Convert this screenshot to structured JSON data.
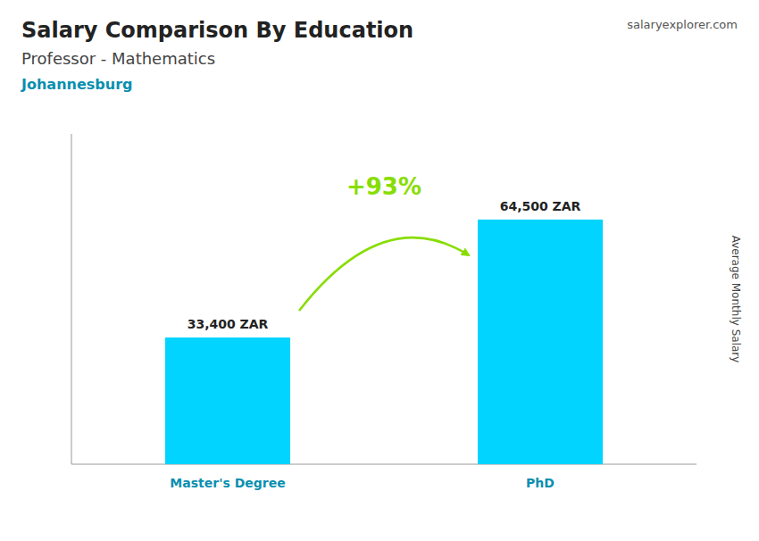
{
  "chart_data": {
    "type": "bar",
    "title": "Salary Comparison By Education",
    "subtitle": "Professor - Mathematics",
    "y_label": "Average Monthly Salary",
    "annotations": [
      {
        "text": "Johannesburg"
      },
      {
        "text": "+93%",
        "color": "#88dd00"
      },
      {
        "text": "salaryexplorer.com"
      }
    ],
    "categories": [
      "Master's Degree",
      "PhD"
    ],
    "values": [
      33400,
      64500
    ],
    "value_labels": [
      "33,400 ZAR",
      "64,500 ZAR"
    ],
    "data_labels": true,
    "color": "#00d4ff",
    "ylim": [
      0,
      87075
    ],
    "grid": false,
    "tick_labels": "x"
  }
}
